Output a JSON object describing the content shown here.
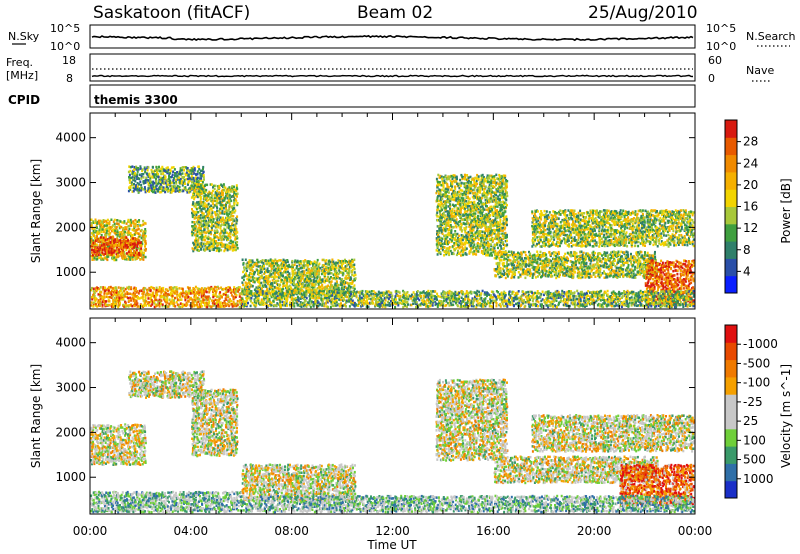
{
  "header": {
    "station": "Saskatoon (fitACF)",
    "beam": "Beam 02",
    "date": "25/Aug/2010"
  },
  "top_panel": {
    "left_label": "N.Sky",
    "right_label": "N.Search",
    "left_ticks": [
      "10^5",
      "10^0"
    ],
    "right_ticks": [
      "10^5",
      "10^0"
    ]
  },
  "freq_panel": {
    "left_label_1": "Freq.",
    "left_label_2": "[MHz]",
    "right_label": "Nave",
    "left_ticks": [
      "18",
      "8"
    ],
    "right_ticks": [
      "60",
      "0"
    ]
  },
  "cpid_panel": {
    "label": "CPID",
    "value": "themis 3300"
  },
  "colors": {
    "frame": "#000000",
    "background": "#ffffff"
  },
  "chart_data": [
    {
      "type": "heatmap",
      "title": "",
      "xlabel": "Time UT",
      "ylabel": "Slant Range [km]",
      "xlim": [
        "00:00",
        "24:00"
      ],
      "ylim": [
        180,
        4550
      ],
      "x_tick_labels": [
        "00:00",
        "04:00",
        "08:00",
        "12:00",
        "16:00",
        "20:00",
        "00:00"
      ],
      "x_tick_hours": [
        0,
        4,
        8,
        12,
        16,
        20,
        24
      ],
      "y_tick_labels": [
        "1000",
        "2000",
        "3000",
        "4000"
      ],
      "y_ticks": [
        1000,
        2000,
        3000,
        4000
      ],
      "colorbar": {
        "label": "Power [dB]",
        "tick_labels": [
          "4",
          "8",
          "12",
          "16",
          "20",
          "24",
          "28"
        ],
        "colors": [
          "#0a1fff",
          "#2a4fa8",
          "#2f7f6a",
          "#3f9f3f",
          "#a8c83a",
          "#f2d400",
          "#f5b000",
          "#f08a00",
          "#e85a00",
          "#d81a10"
        ]
      },
      "scatter_bands": [
        {
          "t0": 0.0,
          "t1": 2.2,
          "r0": 1300,
          "r1": 2200,
          "level": 0.55
        },
        {
          "t0": 0.0,
          "t1": 2.0,
          "r0": 1400,
          "r1": 1800,
          "level": 0.85
        },
        {
          "t0": 1.5,
          "t1": 4.5,
          "r0": 2800,
          "r1": 3400,
          "level": 0.35
        },
        {
          "t0": 4.0,
          "t1": 5.8,
          "r0": 1500,
          "r1": 3000,
          "level": 0.45
        },
        {
          "t0": 0.0,
          "t1": 6.0,
          "r0": 250,
          "r1": 700,
          "level": 0.7
        },
        {
          "t0": 6.0,
          "t1": 10.5,
          "r0": 500,
          "r1": 1300,
          "level": 0.45
        },
        {
          "t0": 6.0,
          "t1": 13.5,
          "r0": 250,
          "r1": 600,
          "level": 0.4
        },
        {
          "t0": 13.7,
          "t1": 16.5,
          "r0": 1400,
          "r1": 3200,
          "level": 0.45
        },
        {
          "t0": 16.0,
          "t1": 22.5,
          "r0": 900,
          "r1": 1500,
          "level": 0.45
        },
        {
          "t0": 17.5,
          "t1": 24.0,
          "r0": 1600,
          "r1": 2400,
          "level": 0.45
        },
        {
          "t0": 22.0,
          "t1": 24.0,
          "r0": 300,
          "r1": 1300,
          "level": 0.85
        },
        {
          "t0": 13.5,
          "t1": 24.0,
          "r0": 250,
          "r1": 600,
          "level": 0.4
        }
      ]
    },
    {
      "type": "heatmap",
      "title": "",
      "xlabel": "Time UT",
      "ylabel": "Slant Range [km]",
      "xlim": [
        "00:00",
        "24:00"
      ],
      "ylim": [
        180,
        4550
      ],
      "x_tick_labels": [
        "00:00",
        "04:00",
        "08:00",
        "12:00",
        "16:00",
        "20:00",
        "00:00"
      ],
      "x_tick_hours": [
        0,
        4,
        8,
        12,
        16,
        20,
        24
      ],
      "y_tick_labels": [
        "1000",
        "2000",
        "3000",
        "4000"
      ],
      "y_ticks": [
        1000,
        2000,
        3000,
        4000
      ],
      "colorbar": {
        "label": "Velocity [m s^-1]",
        "tick_labels": [
          "1000",
          "500",
          "100",
          "25",
          "-25",
          "-100",
          "-500",
          "-1000"
        ],
        "colors": [
          "#1a2fc8",
          "#2f6fa8",
          "#3a9a6a",
          "#6fcf3a",
          "#c8c8c8",
          "#c8c8c8",
          "#f5a000",
          "#f07a00",
          "#e84a00",
          "#e01010"
        ]
      },
      "scatter_bands": [
        {
          "t0": 0.0,
          "t1": 2.2,
          "r0": 1300,
          "r1": 2200,
          "level": 0.5
        },
        {
          "t0": 1.5,
          "t1": 4.5,
          "r0": 2800,
          "r1": 3400,
          "level": 0.5
        },
        {
          "t0": 4.0,
          "t1": 5.8,
          "r0": 1500,
          "r1": 3000,
          "level": 0.5
        },
        {
          "t0": 0.0,
          "t1": 6.0,
          "r0": 250,
          "r1": 700,
          "level": 0.35
        },
        {
          "t0": 6.0,
          "t1": 10.5,
          "r0": 500,
          "r1": 1300,
          "level": 0.5
        },
        {
          "t0": 6.0,
          "t1": 13.5,
          "r0": 250,
          "r1": 600,
          "level": 0.35
        },
        {
          "t0": 13.7,
          "t1": 16.5,
          "r0": 1400,
          "r1": 3200,
          "level": 0.5
        },
        {
          "t0": 16.0,
          "t1": 22.5,
          "r0": 900,
          "r1": 1500,
          "level": 0.5
        },
        {
          "t0": 17.5,
          "t1": 24.0,
          "r0": 1600,
          "r1": 2400,
          "level": 0.5
        },
        {
          "t0": 21.0,
          "t1": 24.0,
          "r0": 400,
          "r1": 1300,
          "level": 0.8
        },
        {
          "t0": 13.5,
          "t1": 24.0,
          "r0": 250,
          "r1": 600,
          "level": 0.35
        }
      ]
    }
  ]
}
